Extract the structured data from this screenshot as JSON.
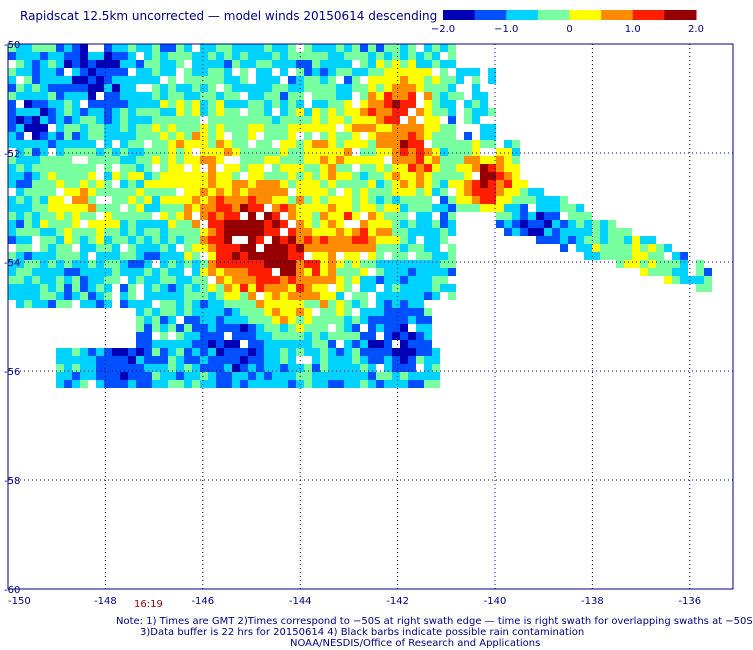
{
  "title": "Rapidscat 12.5km uncorrected — model winds 20150614 descending",
  "colorbar": {
    "ticks": [
      "−2.0",
      "−1.0",
      "0",
      "1.0",
      "2.0"
    ],
    "colors": [
      "#0000b4",
      "#0050ff",
      "#00d2ff",
      "#78ffa0",
      "#ffff00",
      "#ff8c00",
      "#ff1e00",
      "#960000"
    ]
  },
  "axes": {
    "lat_labels": [
      "-50",
      "-52",
      "-54",
      "-56",
      "-58",
      "-60"
    ],
    "lon_labels": [
      "-150",
      "-148",
      "-146",
      "-144",
      "-142",
      "-140",
      "-138",
      "-136"
    ],
    "grid": "dotted"
  },
  "time_label": "16:19",
  "notes": {
    "line1": "Note: 1) Times are GMT 2)Times correspond to −50S at right swath edge — time is right swath for overlapping swaths at −50S",
    "line2": "3)Data buffer is 22 hrs for 20150614 4) Black barbs indicate possible rain contamination",
    "line3": "NOAA/NESDIS/Office of Research and Applications"
  }
}
